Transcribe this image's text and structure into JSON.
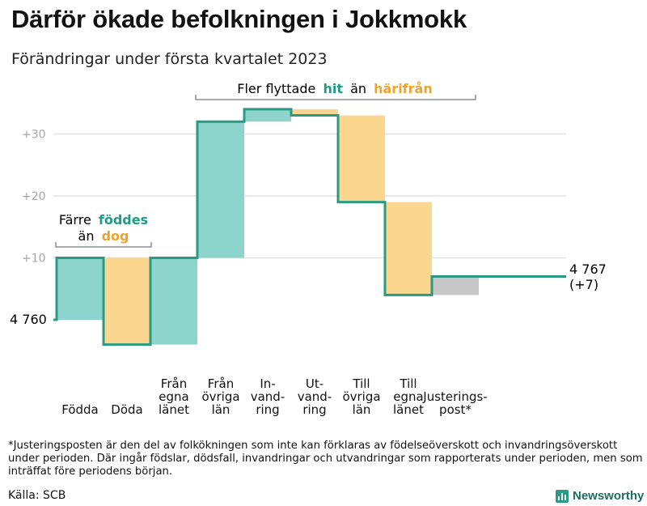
{
  "title": "Därför ökade befolkningen i Jokkmokk",
  "subtitle": "Förändringar under första kvartalet 2023",
  "colors": {
    "increase": "#8dd5cc",
    "decrease": "#fbd68f",
    "adjustment": "#c8c8c8",
    "line": "#2a9a84",
    "teal_text": "#1f9b86",
    "orange_text": "#f0a32a",
    "grid": "#e2e2e2",
    "tick": "#a6a6a6"
  },
  "chart_data": {
    "type": "waterfall",
    "baseline_label": "4 760",
    "end_label_line1": "4 767",
    "end_label_line2": "(+7)",
    "ylim": [
      -4,
      34
    ],
    "yticks": [
      {
        "value": 10,
        "label": "+10"
      },
      {
        "value": 20,
        "label": "+20"
      },
      {
        "value": 30,
        "label": "+30"
      }
    ],
    "steps": [
      {
        "name": "Födda",
        "label": [
          "Födda"
        ],
        "change": 10,
        "kind": "increase"
      },
      {
        "name": "Döda",
        "label": [
          "Döda"
        ],
        "change": -14,
        "kind": "decrease"
      },
      {
        "name": "Från egna länet",
        "label": [
          "Från",
          "egna",
          "länet"
        ],
        "change": 14,
        "kind": "increase"
      },
      {
        "name": "Från övriga län",
        "label": [
          "Från",
          "övriga",
          "län"
        ],
        "change": 22,
        "kind": "increase"
      },
      {
        "name": "Invandring",
        "label": [
          "In-",
          "vand-",
          "ring"
        ],
        "change": 2,
        "kind": "increase"
      },
      {
        "name": "Utvandring",
        "label": [
          "Ut-",
          "vand-",
          "ring"
        ],
        "change": -1,
        "kind": "decrease"
      },
      {
        "name": "Till övriga län",
        "label": [
          "Till",
          "övriga",
          "län"
        ],
        "change": -14,
        "kind": "decrease"
      },
      {
        "name": "Till egna länet",
        "label": [
          "Till",
          "egna",
          "länet"
        ],
        "change": -15,
        "kind": "decrease"
      },
      {
        "name": "Justeringspost",
        "label": [
          "Justerings-",
          "post*"
        ],
        "change": 3,
        "kind": "adjustment"
      }
    ],
    "annotations": {
      "births": {
        "line1": "Färre",
        "teal_word": "föddes",
        "line2_prefix": "än",
        "orange_word": "dog"
      },
      "migration": {
        "prefix": "Fler flyttade",
        "teal_word": "hit",
        "middle": "än",
        "orange_word": "härifrån"
      }
    }
  },
  "footnote": "*Justeringsposten är den del av folkökningen som inte kan förklaras av födelseöverskott och invandringsöverskott under perioden. Där ingår födslar, dödsfall, invandringar och utvandringar som rapporterats under perioden, men som inträffat före periodens början.",
  "source": "Källa: SCB",
  "brand": "Newsworthy"
}
